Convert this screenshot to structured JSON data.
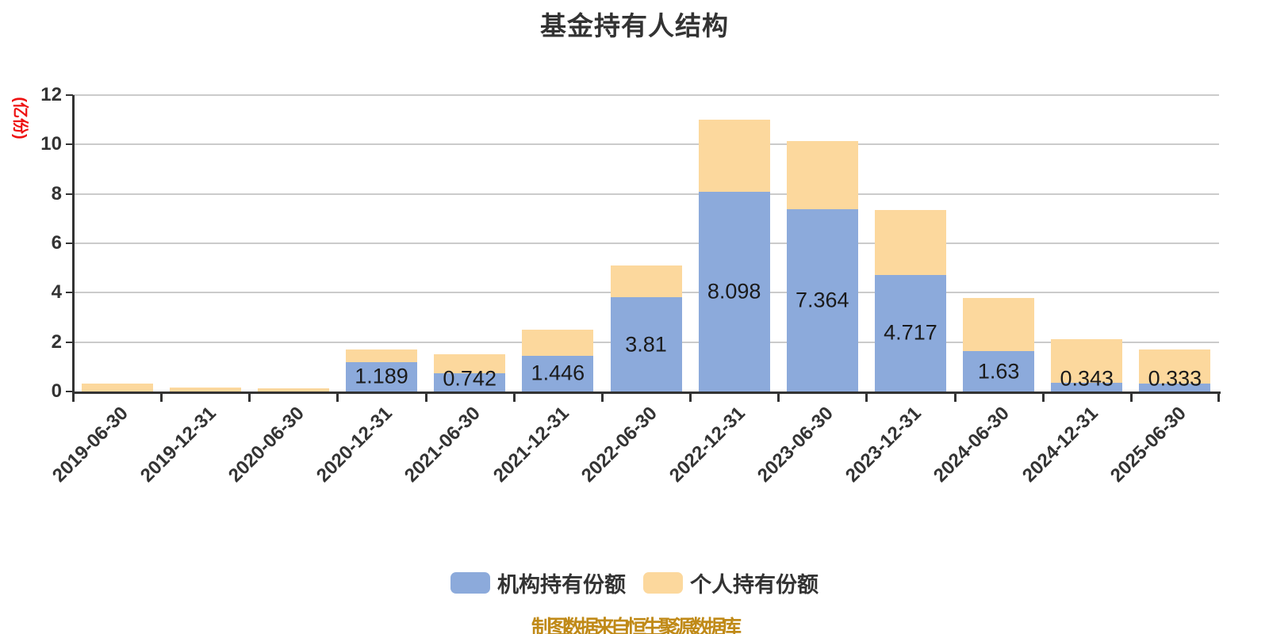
{
  "title": "基金持有人结构",
  "caption": "制图数据来自恒生聚源数据库",
  "y_axis": {
    "name": "(亿份)",
    "ticks": [
      0,
      2,
      4,
      6,
      8,
      10,
      12
    ]
  },
  "legend": {
    "items": [
      {
        "label": "机构持有份额",
        "color": "#8CAADB"
      },
      {
        "label": "个人持有份额",
        "color": "#FCD89D"
      }
    ]
  },
  "colors": {
    "institutional": "#8CAADB",
    "personal": "#FCD89D",
    "title_text": "#333333",
    "axis": "#333333",
    "grid": "#CBCBCB",
    "axis_name_red": "#EE1111",
    "caption_gold": "#C08A18",
    "bar_label": "#1a1a1a"
  },
  "chart_data": {
    "type": "bar",
    "stacked": true,
    "title": "基金持有人结构",
    "xlabel": "",
    "ylabel": "(亿份)",
    "ylim": [
      0,
      12
    ],
    "ytick_interval": 2,
    "grid": true,
    "legend_position": "bottom",
    "categories": [
      "2019-06-30",
      "2019-12-31",
      "2020-06-30",
      "2020-12-31",
      "2021-06-30",
      "2021-12-31",
      "2022-06-30",
      "2022-12-31",
      "2023-06-30",
      "2023-12-31",
      "2024-06-30",
      "2024-12-31",
      "2025-06-30"
    ],
    "series": [
      {
        "name": "机构持有份额",
        "color": "#8CAADB",
        "values": [
          0,
          0,
          0,
          1.189,
          0.742,
          1.446,
          3.81,
          8.098,
          7.364,
          4.717,
          1.63,
          0.343,
          0.333
        ],
        "data_labels_shown": true
      },
      {
        "name": "个人持有份额",
        "color": "#FCD89D",
        "values": [
          0.32,
          0.16,
          0.12,
          0.5,
          0.78,
          1.06,
          1.3,
          2.9,
          2.79,
          2.62,
          2.15,
          1.76,
          1.37
        ],
        "data_labels_shown": false
      }
    ]
  }
}
